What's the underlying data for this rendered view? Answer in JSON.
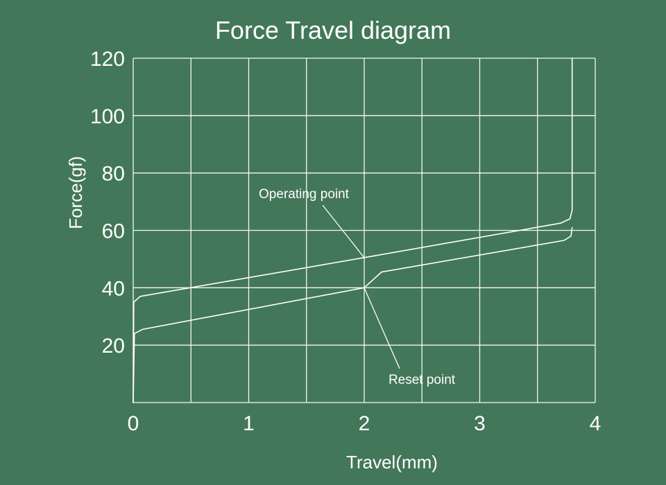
{
  "chart_data": {
    "type": "line",
    "title": "Force Travel diagram",
    "xlabel": "Travel(mm)",
    "ylabel": "Force(gf)",
    "xlim": [
      0,
      4
    ],
    "ylim": [
      0,
      120
    ],
    "x_ticks": [
      "0",
      "1",
      "2",
      "3",
      "4"
    ],
    "y_ticks": [
      "20",
      "40",
      "60",
      "80",
      "100",
      "120"
    ],
    "grid": true,
    "series": [
      {
        "points": [
          [
            0,
            0
          ],
          [
            0.005,
            35
          ],
          [
            0.06,
            37
          ],
          [
            2.0,
            50.5
          ],
          [
            3.7,
            62.5
          ],
          [
            3.78,
            64
          ],
          [
            3.8,
            67
          ],
          [
            3.8,
            120
          ]
        ]
      },
      {
        "points": [
          [
            0,
            0
          ],
          [
            0.01,
            24
          ],
          [
            0.08,
            25.5
          ],
          [
            2.0,
            40
          ],
          [
            2.15,
            45.5
          ],
          [
            3.73,
            56.5
          ],
          [
            3.79,
            58
          ],
          [
            3.8,
            61
          ]
        ]
      }
    ],
    "annotations": [
      {
        "text": "Operating point",
        "x": 2.0,
        "y": 50.5
      },
      {
        "text": "Reset point",
        "x": 2.0,
        "y": 40
      }
    ]
  }
}
